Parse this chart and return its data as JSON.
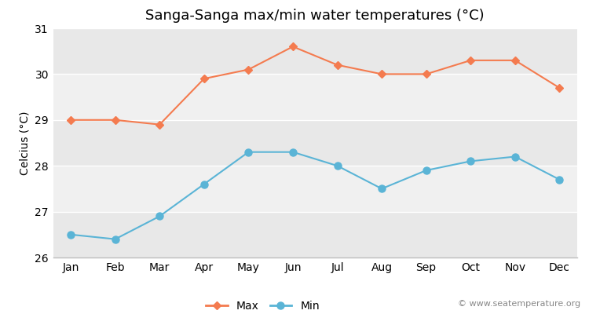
{
  "title": "Sanga-Sanga max/min water temperatures (°C)",
  "ylabel": "Celcius (°C)",
  "months": [
    "Jan",
    "Feb",
    "Mar",
    "Apr",
    "May",
    "Jun",
    "Jul",
    "Aug",
    "Sep",
    "Oct",
    "Nov",
    "Dec"
  ],
  "max_values": [
    29.0,
    29.0,
    28.9,
    29.9,
    30.1,
    30.6,
    30.2,
    30.0,
    30.0,
    30.3,
    30.3,
    29.7
  ],
  "min_values": [
    26.5,
    26.4,
    26.9,
    27.6,
    28.3,
    28.3,
    28.0,
    27.5,
    27.9,
    28.1,
    28.2,
    27.7
  ],
  "max_color": "#f47b4f",
  "min_color": "#5ab4d6",
  "background_color": "#ffffff",
  "plot_bg_light": "#ebebeb",
  "plot_bg_dark": "#dedede",
  "ylim": [
    26.0,
    31.0
  ],
  "yticks": [
    26,
    27,
    28,
    29,
    30,
    31
  ],
  "band_colors": [
    "#e8e8e8",
    "#f0f0f0",
    "#e8e8e8",
    "#f0f0f0",
    "#e8e8e8"
  ],
  "watermark": "© www.seatemperature.org",
  "legend_max": "Max",
  "legend_min": "Min",
  "title_fontsize": 13,
  "label_fontsize": 10,
  "tick_fontsize": 10,
  "watermark_fontsize": 8
}
